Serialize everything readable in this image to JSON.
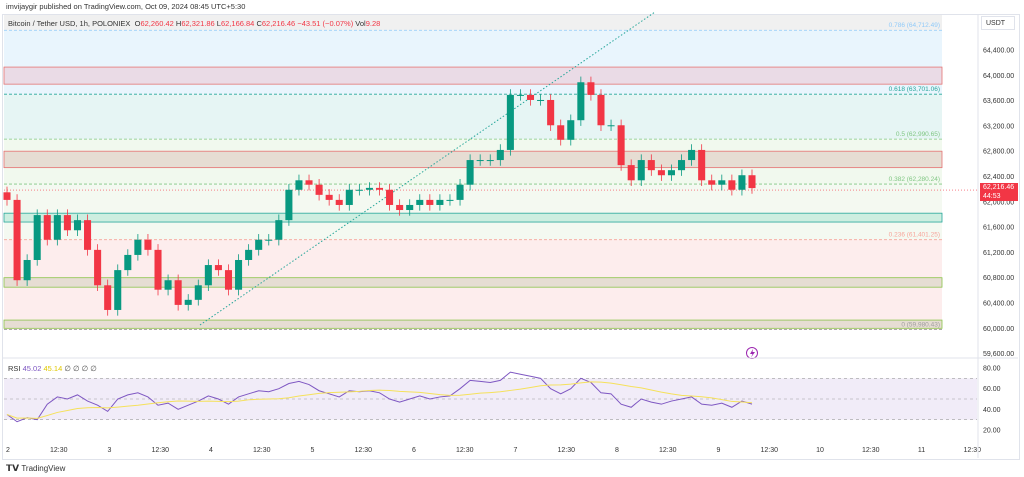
{
  "publisher_line": "imvijaygir published on TradingView.com, Oct 09, 2024 08:45 UTC+5:30",
  "symbol": "Bitcoin / Tether USD, 1h, POLONIEX",
  "ohlc": {
    "o_label": "O",
    "o": "62,260.42",
    "h_label": "H",
    "h": "62,321.86",
    "l_label": "L",
    "l": "62,166.84",
    "c_label": "C",
    "c": "62,216.46",
    "change": "−43.51 (−0.07%)",
    "vol_label": "Vol",
    "vol": "9.28"
  },
  "currency": "USDT",
  "last_price": {
    "price": "62,216.46",
    "countdown": "44:53",
    "color": "#f23645"
  },
  "rsi_legend": {
    "label": "RSI",
    "value": "45.02",
    "ma": "45.14",
    "extra": "∅ ∅ ∅ ∅"
  },
  "footer_brand": "TradingView",
  "colors": {
    "up": "#089981",
    "down": "#f23645",
    "rsi": "#7e57c2",
    "rsi_ma": "#f5e15b",
    "trendline": "#26a69a"
  },
  "chart_data": {
    "type": "candlestick",
    "interval": "1h",
    "price_axis": {
      "ticks": [
        "64,400.00",
        "64,000.00",
        "63,600.00",
        "63,200.00",
        "62,800.00",
        "62,400.00",
        "62,000.00",
        "61,600.00",
        "61,200.00",
        "60,800.00",
        "60,400.00",
        "60,000.00",
        "59,600.00"
      ],
      "values": [
        64400,
        64000,
        63600,
        63200,
        62800,
        62400,
        62000,
        61600,
        61200,
        60800,
        60400,
        60000,
        59600
      ]
    },
    "time_axis": [
      "2",
      "12:30",
      "3",
      "12:30",
      "4",
      "12:30",
      "5",
      "12:30",
      "6",
      "12:30",
      "7",
      "12:30",
      "8",
      "12:30",
      "9",
      "12:30",
      "10",
      "12:30",
      "11",
      "12:30"
    ],
    "closes": [
      62030,
      60760,
      61080,
      61790,
      61400,
      61790,
      61550,
      61710,
      61240,
      60680,
      60290,
      60920,
      61160,
      61400,
      61240,
      60610,
      60760,
      60370,
      60450,
      60680,
      61000,
      60920,
      60610,
      61080,
      61240,
      61400,
      61400,
      61710,
      62190,
      62340,
      62270,
      62110,
      62030,
      61950,
      62190,
      62190,
      62220,
      62190,
      61950,
      61870,
      61950,
      62030,
      61950,
      62030,
      62030,
      62270,
      62660,
      62660,
      62660,
      62820,
      63690,
      63690,
      63610,
      63610,
      63210,
      62980,
      63290,
      63890,
      63690,
      63210,
      63210,
      62580,
      62340,
      62660,
      62500,
      62420,
      62500,
      62660,
      62820,
      62340,
      62270,
      62340,
      62190,
      62420,
      62216.46
    ],
    "fib_levels": [
      {
        "ratio": "0.786",
        "label": "0.786 (64,712.49)",
        "price": 64712.49,
        "color": "#90caf9"
      },
      {
        "ratio": "0.618",
        "label": "0.618 (63,701.06)",
        "price": 63701.06,
        "color": "#26a69a"
      },
      {
        "ratio": "0.5",
        "label": "0.5 (62,990.65)",
        "price": 62990.65,
        "color": "#81c784"
      },
      {
        "ratio": "0.382",
        "label": "0.382 (62,280.24)",
        "price": 62280.24,
        "color": "#81c784"
      },
      {
        "ratio": "0.236",
        "label": "0.236 (61,401.25)",
        "price": 61401.25,
        "color": "#f7a49a"
      },
      {
        "ratio": "0",
        "label": "0 (59,980.43)",
        "price": 59980.43,
        "color": "#9e9e9e"
      }
    ],
    "zones": [
      {
        "top": 64130,
        "bottom": 63860,
        "fill": "#eadbe6",
        "border": "#e57373"
      },
      {
        "top": 62800,
        "bottom": 62540,
        "fill": "#e6ddd3",
        "border": "#e57373"
      },
      {
        "top": 61820,
        "bottom": 61680,
        "fill": "#cdeee0",
        "border": "#26a69a"
      },
      {
        "top": 60800,
        "bottom": 60650,
        "fill": "#e6ddd3",
        "border": "#8bc34a"
      },
      {
        "top": 60130,
        "bottom": 60000,
        "fill": "#e6ddd3",
        "border": "#8bc34a"
      }
    ],
    "rsi": {
      "axis": [
        "80.00",
        "60.00",
        "40.00",
        "20.00"
      ],
      "axis_values": [
        80,
        60,
        40,
        20
      ],
      "bands": [
        70,
        50,
        30
      ],
      "values": [
        35,
        28,
        32,
        30,
        45,
        52,
        50,
        54,
        48,
        44,
        38,
        50,
        54,
        56,
        52,
        44,
        46,
        40,
        44,
        48,
        53,
        50,
        45,
        52,
        55,
        58,
        57,
        60,
        65,
        67,
        64,
        58,
        55,
        52,
        58,
        57,
        58,
        56,
        50,
        47,
        50,
        53,
        50,
        52,
        53,
        60,
        68,
        67,
        66,
        68,
        76,
        74,
        72,
        70,
        60,
        55,
        60,
        70,
        66,
        56,
        55,
        45,
        42,
        50,
        47,
        45,
        48,
        50,
        52,
        45,
        44,
        46,
        42,
        48,
        45.02
      ]
    }
  }
}
